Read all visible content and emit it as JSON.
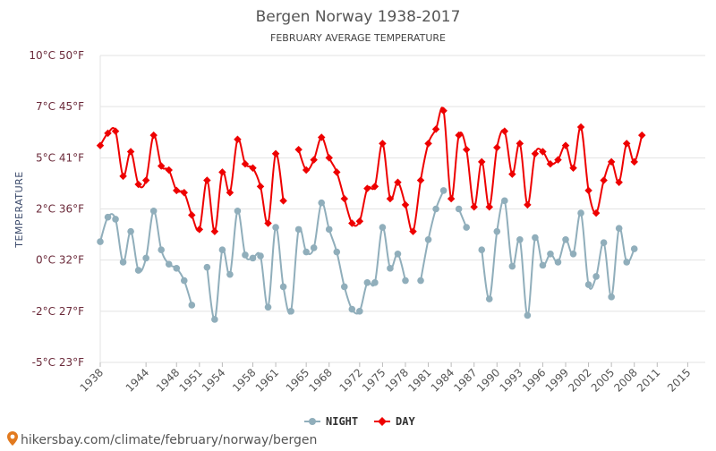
{
  "chart_data": {
    "type": "line",
    "title": "Bergen Norway 1938-2017",
    "subtitle": "FEBRUARY AVERAGE TEMPERATURE",
    "ylabel": "TEMPERATURE",
    "ylim": [
      -5,
      10
    ],
    "yticks": [
      {
        "value": 10,
        "label": "10°C 50°F"
      },
      {
        "value": 7.5,
        "label": "7°C 45°F"
      },
      {
        "value": 5,
        "label": "5°C 41°F"
      },
      {
        "value": 2.5,
        "label": "2°C 36°F"
      },
      {
        "value": 0,
        "label": "0°C 32°F"
      },
      {
        "value": -2.5,
        "label": "-2°C 27°F"
      },
      {
        "value": -5,
        "label": "-5°C 23°F"
      }
    ],
    "xlim": [
      1938,
      2017.3
    ],
    "xticks": [
      1938,
      1944,
      1948,
      1951,
      1954,
      1958,
      1961,
      1965,
      1968,
      1972,
      1975,
      1978,
      1981,
      1984,
      1987,
      1990,
      1993,
      1996,
      1999,
      2002,
      2005,
      2008,
      2011,
      2015
    ],
    "grid": true,
    "legend_position": "bottom-center",
    "series": [
      {
        "name": "NIGHT",
        "color": "#90aebb",
        "points": [
          [
            1938,
            0.9
          ],
          [
            1939,
            2.1
          ],
          [
            1940,
            2.0
          ],
          [
            1941,
            -0.1
          ],
          [
            1942,
            1.4
          ],
          [
            1943,
            -0.5
          ],
          [
            1944,
            0.1
          ],
          [
            1945,
            2.4
          ],
          [
            1946,
            0.5
          ],
          [
            1947,
            -0.2
          ],
          [
            1948,
            -0.4
          ],
          [
            1949,
            -1.0
          ],
          [
            1950,
            -2.2
          ],
          [
            1952,
            -0.35
          ],
          [
            1953,
            -2.9
          ],
          [
            1954,
            0.5
          ],
          [
            1955,
            -0.7
          ],
          [
            1956,
            2.4
          ],
          [
            1957,
            0.25
          ],
          [
            1958,
            0.1
          ],
          [
            1959,
            0.2
          ],
          [
            1960,
            -2.3
          ],
          [
            1961,
            1.6
          ],
          [
            1962,
            -1.3
          ],
          [
            1963,
            -2.5
          ],
          [
            1964,
            1.5
          ],
          [
            1965,
            0.4
          ],
          [
            1966,
            0.6
          ],
          [
            1967,
            2.8
          ],
          [
            1968,
            1.5
          ],
          [
            1969,
            0.4
          ],
          [
            1970,
            -1.3
          ],
          [
            1971,
            -2.4
          ],
          [
            1972,
            -2.5
          ],
          [
            1973,
            -1.1
          ],
          [
            1974,
            -1.1
          ],
          [
            1975,
            1.6
          ],
          [
            1976,
            -0.4
          ],
          [
            1977,
            0.3
          ],
          [
            1978,
            -1.0
          ],
          [
            1980,
            -1.0
          ],
          [
            1981,
            1.0
          ],
          [
            1982,
            2.5
          ],
          [
            1983,
            3.4
          ],
          [
            1985,
            2.5
          ],
          [
            1986,
            1.6
          ],
          [
            1988,
            0.5
          ],
          [
            1989,
            -1.9
          ],
          [
            1990,
            1.4
          ],
          [
            1991,
            2.9
          ],
          [
            1992,
            -0.3
          ],
          [
            1993,
            1.0
          ],
          [
            1994,
            -2.7
          ],
          [
            1995,
            1.1
          ],
          [
            1996,
            -0.25
          ],
          [
            1997,
            0.3
          ],
          [
            1998,
            -0.1
          ],
          [
            1999,
            1.0
          ],
          [
            2000,
            0.3
          ],
          [
            2001,
            2.3
          ],
          [
            2002,
            -1.2
          ],
          [
            2003,
            -0.8
          ],
          [
            2004,
            0.85
          ],
          [
            2005,
            -1.8
          ],
          [
            2006,
            1.55
          ],
          [
            2007,
            -0.1
          ],
          [
            2008,
            0.55
          ]
        ]
      },
      {
        "name": "DAY",
        "color": "#ee0000",
        "points": [
          [
            1938,
            5.6
          ],
          [
            1939,
            6.2
          ],
          [
            1940,
            6.3
          ],
          [
            1941,
            4.1
          ],
          [
            1942,
            5.3
          ],
          [
            1943,
            3.7
          ],
          [
            1944,
            3.9
          ],
          [
            1945,
            6.1
          ],
          [
            1946,
            4.6
          ],
          [
            1947,
            4.4
          ],
          [
            1948,
            3.4
          ],
          [
            1949,
            3.3
          ],
          [
            1950,
            2.2
          ],
          [
            1951,
            1.5
          ],
          [
            1952,
            3.9
          ],
          [
            1953,
            1.4
          ],
          [
            1954,
            4.3
          ],
          [
            1955,
            3.3
          ],
          [
            1956,
            5.9
          ],
          [
            1957,
            4.7
          ],
          [
            1958,
            4.5
          ],
          [
            1959,
            3.6
          ],
          [
            1960,
            1.8
          ],
          [
            1961,
            5.2
          ],
          [
            1962,
            2.9
          ],
          [
            1964,
            5.4
          ],
          [
            1965,
            4.4
          ],
          [
            1966,
            4.9
          ],
          [
            1967,
            6.0
          ],
          [
            1968,
            5.0
          ],
          [
            1969,
            4.3
          ],
          [
            1970,
            3.0
          ],
          [
            1971,
            1.8
          ],
          [
            1972,
            1.9
          ],
          [
            1973,
            3.5
          ],
          [
            1974,
            3.6
          ],
          [
            1975,
            5.7
          ],
          [
            1976,
            3.0
          ],
          [
            1977,
            3.8
          ],
          [
            1978,
            2.7
          ],
          [
            1979,
            1.4
          ],
          [
            1980,
            3.9
          ],
          [
            1981,
            5.7
          ],
          [
            1982,
            6.4
          ],
          [
            1983,
            7.3
          ],
          [
            1984,
            3.0
          ],
          [
            1985,
            6.1
          ],
          [
            1986,
            5.4
          ],
          [
            1987,
            2.6
          ],
          [
            1988,
            4.8
          ],
          [
            1989,
            2.6
          ],
          [
            1990,
            5.5
          ],
          [
            1991,
            6.3
          ],
          [
            1992,
            4.2
          ],
          [
            1993,
            5.7
          ],
          [
            1994,
            2.7
          ],
          [
            1995,
            5.2
          ],
          [
            1996,
            5.3
          ],
          [
            1997,
            4.7
          ],
          [
            1998,
            4.9
          ],
          [
            1999,
            5.6
          ],
          [
            2000,
            4.5
          ],
          [
            2001,
            6.5
          ],
          [
            2002,
            3.4
          ],
          [
            2003,
            2.3
          ],
          [
            2004,
            3.9
          ],
          [
            2005,
            4.8
          ],
          [
            2006,
            3.8
          ],
          [
            2007,
            5.7
          ],
          [
            2008,
            4.8
          ],
          [
            2009,
            6.1
          ]
        ]
      }
    ]
  },
  "footer": {
    "text": "hikersbay.com/climate/february/norway/bergen"
  }
}
